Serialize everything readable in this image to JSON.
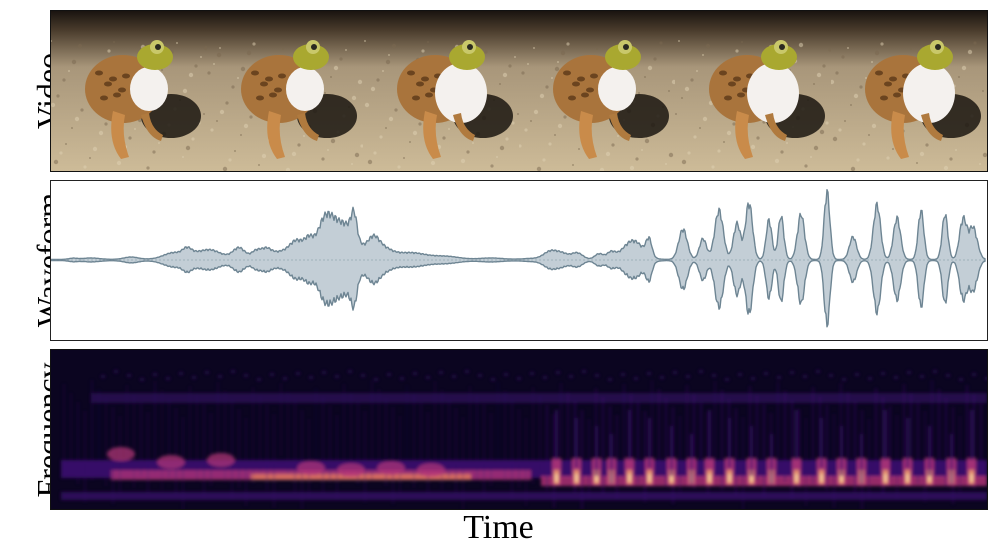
{
  "rows": {
    "video_label": "Video",
    "waveform_label": "Waveform",
    "frequency_label": "Frequency"
  },
  "x_axis_label": "Time",
  "video": {
    "frame_count": 6,
    "frames": [
      {
        "subject": "frog",
        "vocal_sac": "small"
      },
      {
        "subject": "frog",
        "vocal_sac": "small"
      },
      {
        "subject": "frog",
        "vocal_sac": "large"
      },
      {
        "subject": "frog",
        "vocal_sac": "small"
      },
      {
        "subject": "frog",
        "vocal_sac": "large"
      },
      {
        "subject": "frog",
        "vocal_sac": "large"
      }
    ]
  },
  "colors": {
    "waveform_fill": "#c3ced6",
    "waveform_stroke": "#6e8593",
    "spectrogram_background": "#0b0520",
    "spectrogram_low": "#3b0f70",
    "spectrogram_mid": "#b63679",
    "spectrogram_high": "#fcfdbf"
  }
}
